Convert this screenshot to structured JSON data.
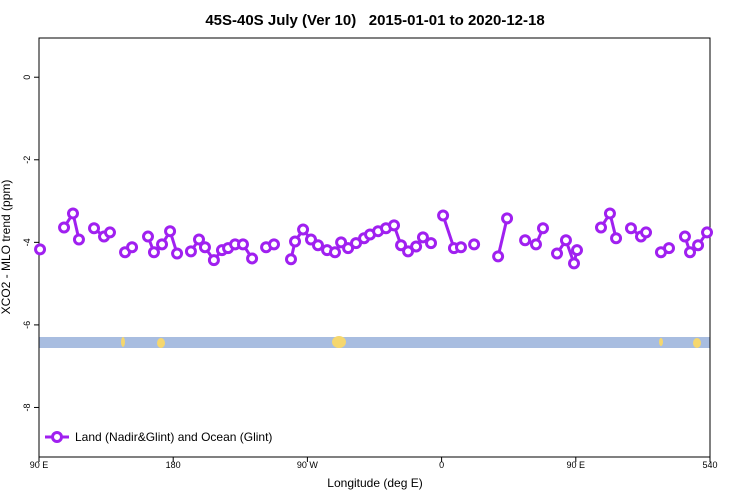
{
  "chart_data": {
    "type": "line",
    "title": "45S-40S July (Ver 10)   2015-01-01 to 2020-12-18",
    "x_label": "Longitude (deg E)",
    "y_label": "XCO2 - MLO trend (ppm)",
    "xlim": [
      90,
      540
    ],
    "ylim": [
      -9.2,
      0.95
    ],
    "xticks": [
      {
        "value": 90,
        "label": "90 E"
      },
      180,
      {
        "value": 270,
        "label": "90 W"
      },
      {
        "value": 360,
        "label": "0"
      },
      {
        "value": 450,
        "label": "90 E"
      },
      540
    ],
    "yticks": [
      0,
      -2,
      -4,
      -6,
      -8
    ],
    "legend": "bottom-left",
    "grid": false,
    "series": [
      {
        "name": "Land (Nadir&Glint) and Ocean (Glint)",
        "color": "#a020f0",
        "x": [
          90.7,
          null,
          106.8,
          112.8,
          116.8,
          null,
          126.9,
          133.6,
          137.6,
          null,
          147.7,
          152.4,
          null,
          163.1,
          167.1,
          172.5,
          177.9,
          182.6,
          null,
          191.9,
          197.3,
          201.3,
          207.3,
          212.7,
          216.8,
          221.5,
          226.8,
          232.9,
          null,
          242.3,
          247.6,
          null,
          259,
          261.7,
          267.1,
          272.4,
          277.1,
          283.2,
          288.5,
          292.6,
          297.3,
          302.6,
          308,
          312,
          317.4,
          322.7,
          328.1,
          332.8,
          337.5,
          342.9,
          347.5,
          352.9,
          null,
          361,
          368.3,
          373,
          null,
          381.8,
          null,
          397.9,
          403.9,
          null,
          416,
          423.3,
          428,
          null,
          437.4,
          443.4,
          448.8,
          450.8,
          null,
          466.9,
          472.9,
          477,
          null,
          487,
          493.7,
          497.1,
          null,
          507.1,
          512.5,
          null,
          523.2,
          526.6,
          532,
          538
        ],
        "values": [
          -4.17,
          null,
          -3.64,
          -3.3,
          -3.93,
          null,
          -3.66,
          -3.86,
          -3.76,
          null,
          -4.24,
          -4.12,
          null,
          -3.86,
          -4.24,
          -4.05,
          -3.73,
          -4.27,
          null,
          -4.22,
          -3.93,
          -4.12,
          -4.43,
          -4.19,
          -4.14,
          -4.05,
          -4.05,
          -4.39,
          null,
          -4.12,
          -4.05,
          null,
          -4.41,
          -3.98,
          -3.69,
          -3.93,
          -4.07,
          -4.19,
          -4.24,
          -4.0,
          -4.14,
          -4.02,
          -3.9,
          -3.81,
          -3.73,
          -3.66,
          -3.59,
          -4.07,
          -4.22,
          -4.1,
          -3.88,
          -4.02,
          null,
          -3.35,
          -4.14,
          -4.12,
          null,
          -4.05,
          null,
          -4.34,
          -3.42,
          null,
          -3.95,
          -4.05,
          -3.66,
          null,
          -4.27,
          -3.95,
          -4.51,
          -4.19,
          null,
          -3.64,
          -3.3,
          -3.9,
          null,
          -3.66,
          -3.86,
          -3.76,
          null,
          -4.24,
          -4.14,
          null,
          -3.86,
          -4.24,
          -4.07,
          -3.76
        ]
      }
    ]
  }
}
